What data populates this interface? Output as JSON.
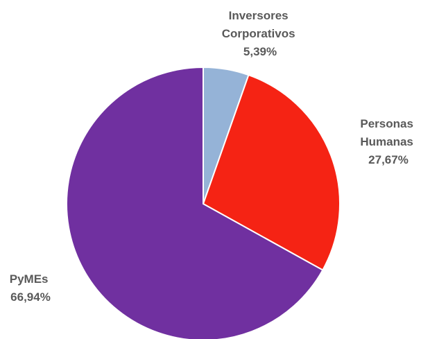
{
  "chart_data": {
    "type": "pie",
    "title": "",
    "start_angle_deg": 0,
    "direction": "clockwise",
    "slices": [
      {
        "label_lines": [
          "Inversores",
          "Corporativos"
        ],
        "value": 5.39,
        "value_label": "5,39%",
        "color": "#95B3D7"
      },
      {
        "label_lines": [
          "Personas",
          "Humanas"
        ],
        "value": 27.67,
        "value_label": "27,67%",
        "color": "#F52314"
      },
      {
        "label_lines": [
          "PyMEs"
        ],
        "value": 66.94,
        "value_label": "66,94%",
        "color": "#7030A0"
      }
    ],
    "legend": "none"
  }
}
